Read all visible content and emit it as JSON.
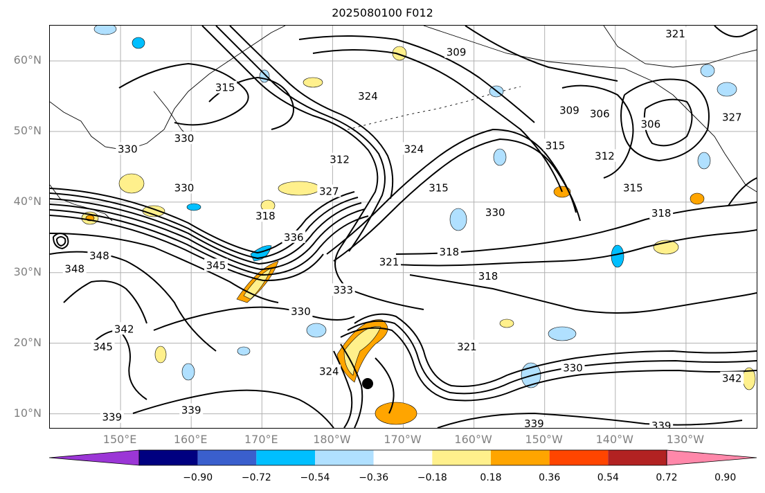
{
  "title": "2025080100 F012",
  "lat_labels": [
    {
      "text": "60°N",
      "lat": 60
    },
    {
      "text": "50°N",
      "lat": 50
    },
    {
      "text": "40°N",
      "lat": 40
    },
    {
      "text": "30°N",
      "lat": 30
    },
    {
      "text": "20°N",
      "lat": 20
    },
    {
      "text": "10°N",
      "lat": 10
    }
  ],
  "lon_labels": [
    {
      "text": "150°E",
      "lon": 150
    },
    {
      "text": "160°E",
      "lon": 160
    },
    {
      "text": "170°E",
      "lon": 170
    },
    {
      "text": "180°W",
      "lon": 180
    },
    {
      "text": "170°W",
      "lon": 190
    },
    {
      "text": "160°W",
      "lon": 200
    },
    {
      "text": "150°W",
      "lon": 210
    },
    {
      "text": "140°W",
      "lon": 220
    },
    {
      "text": "130°W",
      "lon": 230
    }
  ],
  "contour_labels": [
    {
      "text": "321",
      "lon": 228.5,
      "lat": 63.8
    },
    {
      "text": "309",
      "lon": 197.5,
      "lat": 61.2
    },
    {
      "text": "315",
      "lon": 164.8,
      "lat": 56.2
    },
    {
      "text": "324",
      "lon": 185.0,
      "lat": 55.0
    },
    {
      "text": "309",
      "lon": 213.5,
      "lat": 53.0
    },
    {
      "text": "306",
      "lon": 217.8,
      "lat": 52.5
    },
    {
      "text": "306",
      "lon": 225.0,
      "lat": 51.0
    },
    {
      "text": "327",
      "lon": 236.5,
      "lat": 52.0
    },
    {
      "text": "330",
      "lon": 151.0,
      "lat": 47.5
    },
    {
      "text": "330",
      "lon": 159.0,
      "lat": 49.0
    },
    {
      "text": "315",
      "lon": 211.5,
      "lat": 48.0
    },
    {
      "text": "312",
      "lon": 218.5,
      "lat": 46.5
    },
    {
      "text": "324",
      "lon": 191.5,
      "lat": 47.5
    },
    {
      "text": "312",
      "lon": 181.0,
      "lat": 46.0
    },
    {
      "text": "330",
      "lon": 159.0,
      "lat": 42.0
    },
    {
      "text": "327",
      "lon": 179.5,
      "lat": 41.5
    },
    {
      "text": "315",
      "lon": 195.0,
      "lat": 42.0
    },
    {
      "text": "315",
      "lon": 222.5,
      "lat": 42.0
    },
    {
      "text": "318",
      "lon": 170.5,
      "lat": 38.0
    },
    {
      "text": "330",
      "lon": 203.0,
      "lat": 38.5
    },
    {
      "text": "318",
      "lon": 226.5,
      "lat": 38.4
    },
    {
      "text": "336",
      "lon": 174.5,
      "lat": 35.0
    },
    {
      "text": "348",
      "lon": 143.5,
      "lat": 30.5
    },
    {
      "text": "348",
      "lon": 147.0,
      "lat": 32.4
    },
    {
      "text": "345",
      "lon": 163.5,
      "lat": 31.0
    },
    {
      "text": "321",
      "lon": 188.0,
      "lat": 31.5
    },
    {
      "text": "318",
      "lon": 196.5,
      "lat": 32.9
    },
    {
      "text": "318",
      "lon": 202.0,
      "lat": 29.5
    },
    {
      "text": "333",
      "lon": 181.5,
      "lat": 27.5
    },
    {
      "text": "330",
      "lon": 175.5,
      "lat": 24.5
    },
    {
      "text": "342",
      "lon": 150.5,
      "lat": 22.0
    },
    {
      "text": "345",
      "lon": 147.5,
      "lat": 19.5
    },
    {
      "text": "321",
      "lon": 199.0,
      "lat": 19.5
    },
    {
      "text": "324",
      "lon": 179.5,
      "lat": 16.0
    },
    {
      "text": "330",
      "lon": 214.0,
      "lat": 16.5
    },
    {
      "text": "342",
      "lon": 236.5,
      "lat": 15.0
    },
    {
      "text": "339",
      "lon": 148.8,
      "lat": 9.5
    },
    {
      "text": "339",
      "lon": 160.0,
      "lat": 10.5
    },
    {
      "text": "339",
      "lon": 208.5,
      "lat": 8.6
    },
    {
      "text": "339",
      "lon": 226.5,
      "lat": 8.3
    }
  ],
  "colorbar": {
    "colors": [
      "#9b36d6",
      "#000080",
      "#3a5fcd",
      "#00bfff",
      "#b0e0ff",
      "#ffffff",
      "#fff08c",
      "#ffa500",
      "#ff4500",
      "#b22222",
      "#ff88aa"
    ],
    "ticks": [
      "−0.90",
      "−0.72",
      "−0.54",
      "−0.36",
      "−0.18",
      "0.18",
      "0.36",
      "0.54",
      "0.72",
      "0.90"
    ]
  },
  "map_extent": {
    "lon_min": 140,
    "lon_max": 240,
    "lat_min": 8,
    "lat_max": 65
  }
}
